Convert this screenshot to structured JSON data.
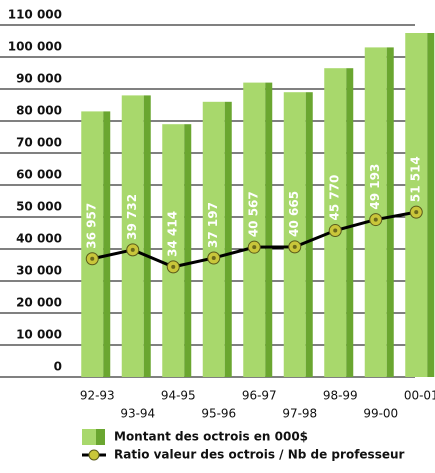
{
  "chart_data": {
    "type": "bar",
    "categories": [
      "92-93",
      "93-94",
      "94-95",
      "95-96",
      "96-97",
      "97-98",
      "98-99",
      "99-00",
      "00-01"
    ],
    "series": [
      {
        "name": "Montant des octrois en 000$",
        "type": "bar",
        "color": "#a8d86c",
        "side_color": "#6aa630",
        "values": [
          83000,
          88000,
          79000,
          86000,
          92000,
          89000,
          96500,
          103000,
          107500
        ]
      },
      {
        "name": "Ratio valeur des octrois / Nb de professeur",
        "type": "line",
        "color": "#000000",
        "marker_color": "#c9c63a",
        "values": [
          36957,
          39732,
          34414,
          37197,
          40567,
          40665,
          45770,
          49193,
          51514
        ],
        "value_labels": [
          "36 957",
          "39 732",
          "34 414",
          "37 197",
          "40 567",
          "40 665",
          "45 770",
          "49 193",
          "51 514"
        ]
      }
    ],
    "ylim": [
      0,
      110000
    ],
    "yticks": [
      0,
      {
        "value": 10000,
        "label": "10 000"
      },
      {
        "value": 20000,
        "label": "20 000"
      },
      {
        "value": 30000,
        "label": "30 000"
      },
      {
        "value": 40000,
        "label": "40 000"
      },
      {
        "value": 50000,
        "label": "50 000"
      },
      {
        "value": 60000,
        "label": "60 000"
      },
      {
        "value": 70000,
        "label": "70 000"
      },
      {
        "value": 80000,
        "label": "80 000"
      },
      {
        "value": 90000,
        "label": "90 000"
      },
      {
        "value": 100000,
        "label": "100 000"
      },
      {
        "value": 110000,
        "label": "110 000"
      }
    ],
    "grid": true
  }
}
